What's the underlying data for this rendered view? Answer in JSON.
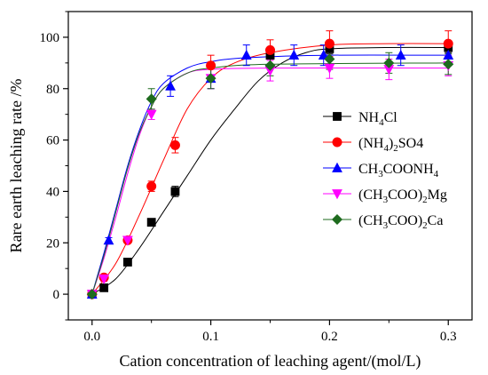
{
  "chart_data": {
    "type": "scatter",
    "title": "",
    "xlabel": "Cation concentration of leaching agent/(mol/L)",
    "ylabel": "Rare earth leaching rate /%",
    "xlim": [
      -0.02,
      0.32
    ],
    "ylim": [
      -10,
      110
    ],
    "xticks": [
      0.0,
      0.1,
      0.2,
      0.3
    ],
    "xtick_labels": [
      "0.0",
      "0.1",
      "0.2",
      "0.3"
    ],
    "yticks": [
      0,
      20,
      40,
      60,
      80,
      100
    ],
    "ytick_labels": [
      "0",
      "20",
      "40",
      "60",
      "80",
      "100"
    ],
    "grid": false,
    "legend_position": "right",
    "series": [
      {
        "name": "NH4Cl",
        "legend": {
          "pre": "NH",
          "sub": "4",
          "post": "Cl",
          "sub2": "",
          "post2": ""
        },
        "color": "#000000",
        "marker": "square",
        "x": [
          0,
          0.01,
          0.03,
          0.05,
          0.07,
          0.15,
          0.2,
          0.3
        ],
        "y": [
          0,
          2.5,
          12.5,
          28,
          40,
          93,
          95.5,
          96
        ],
        "err": [
          0,
          1,
          1,
          1,
          2,
          2,
          2,
          2
        ],
        "fit": [
          [
            0,
            0
          ],
          [
            0.02,
            6
          ],
          [
            0.04,
            18
          ],
          [
            0.06,
            32
          ],
          [
            0.08,
            46
          ],
          [
            0.1,
            60
          ],
          [
            0.12,
            72
          ],
          [
            0.14,
            83
          ],
          [
            0.16,
            90
          ],
          [
            0.18,
            94
          ],
          [
            0.2,
            95.5
          ],
          [
            0.25,
            96
          ],
          [
            0.3,
            96
          ]
        ]
      },
      {
        "name": "(NH4)2SO4",
        "legend": {
          "pre": "(NH",
          "sub": "4",
          "post": ")",
          "sub2": "2",
          "post2": "SO4"
        },
        "color": "#ff0000",
        "marker": "circle",
        "x": [
          0,
          0.01,
          0.03,
          0.05,
          0.07,
          0.1,
          0.15,
          0.2,
          0.3
        ],
        "y": [
          0,
          6.5,
          21,
          42,
          58,
          89,
          95,
          97.5,
          97.5
        ],
        "err": [
          0,
          1,
          1,
          2,
          3,
          4,
          4,
          5,
          5
        ],
        "fit": [
          [
            0,
            0
          ],
          [
            0.02,
            12
          ],
          [
            0.04,
            31
          ],
          [
            0.06,
            52
          ],
          [
            0.08,
            72
          ],
          [
            0.1,
            84
          ],
          [
            0.12,
            90
          ],
          [
            0.15,
            94
          ],
          [
            0.2,
            97
          ],
          [
            0.25,
            97.5
          ],
          [
            0.3,
            97.5
          ]
        ]
      },
      {
        "name": "CH3COONH4",
        "legend": {
          "pre": "CH",
          "sub": "3",
          "post": "COONH",
          "sub2": "4",
          "post2": ""
        },
        "color": "#0000ff",
        "marker": "triangle-up",
        "x": [
          0,
          0.014,
          0.066,
          0.1,
          0.13,
          0.17,
          0.195,
          0.26,
          0.3
        ],
        "y": [
          0,
          21,
          81,
          84,
          93,
          93,
          93,
          93,
          93
        ],
        "err": [
          0,
          1,
          4,
          4,
          4,
          4,
          4,
          4,
          4
        ],
        "fit": [
          [
            0,
            0
          ],
          [
            0.01,
            16
          ],
          [
            0.02,
            33
          ],
          [
            0.03,
            50
          ],
          [
            0.04,
            64
          ],
          [
            0.05,
            75
          ],
          [
            0.06,
            82
          ],
          [
            0.08,
            88
          ],
          [
            0.1,
            90.5
          ],
          [
            0.13,
            92
          ],
          [
            0.2,
            93
          ],
          [
            0.3,
            93
          ]
        ]
      },
      {
        "name": "(CH3COO)2Mg",
        "legend": {
          "pre": "(CH",
          "sub": "3",
          "post": "COO)",
          "sub2": "2",
          "post2": "Mg"
        },
        "color": "#ff00ff",
        "marker": "triangle-down",
        "x": [
          0,
          0.01,
          0.03,
          0.05,
          0.1,
          0.15,
          0.2,
          0.25,
          0.3
        ],
        "y": [
          0,
          6,
          21,
          70,
          84,
          87,
          88,
          87.5,
          89
        ],
        "err": [
          0,
          1,
          1,
          2,
          4,
          4,
          4,
          4,
          4
        ],
        "fit": [
          [
            0,
            0
          ],
          [
            0.01,
            14
          ],
          [
            0.02,
            30
          ],
          [
            0.03,
            47
          ],
          [
            0.04,
            62
          ],
          [
            0.05,
            73
          ],
          [
            0.06,
            80
          ],
          [
            0.08,
            86
          ],
          [
            0.1,
            87.5
          ],
          [
            0.15,
            88
          ],
          [
            0.3,
            88
          ]
        ]
      },
      {
        "name": "(CH3COO)2Ca",
        "legend": {
          "pre": "(CH",
          "sub": "3",
          "post": "COO)",
          "sub2": "2",
          "post2": "Ca"
        },
        "color": "#1e6b1e",
        "marker": "diamond",
        "x": [
          0,
          0.05,
          0.1,
          0.15,
          0.2,
          0.25,
          0.3
        ],
        "y": [
          0,
          76,
          84,
          89,
          91.5,
          90,
          89.5
        ],
        "err": [
          0,
          4,
          4,
          4,
          4,
          4,
          4
        ],
        "fit": [
          [
            0,
            0
          ],
          [
            0.01,
            15
          ],
          [
            0.02,
            32
          ],
          [
            0.03,
            49
          ],
          [
            0.04,
            63
          ],
          [
            0.05,
            73
          ],
          [
            0.06,
            80
          ],
          [
            0.08,
            86
          ],
          [
            0.1,
            88
          ],
          [
            0.15,
            89.5
          ],
          [
            0.3,
            90
          ]
        ]
      }
    ]
  }
}
